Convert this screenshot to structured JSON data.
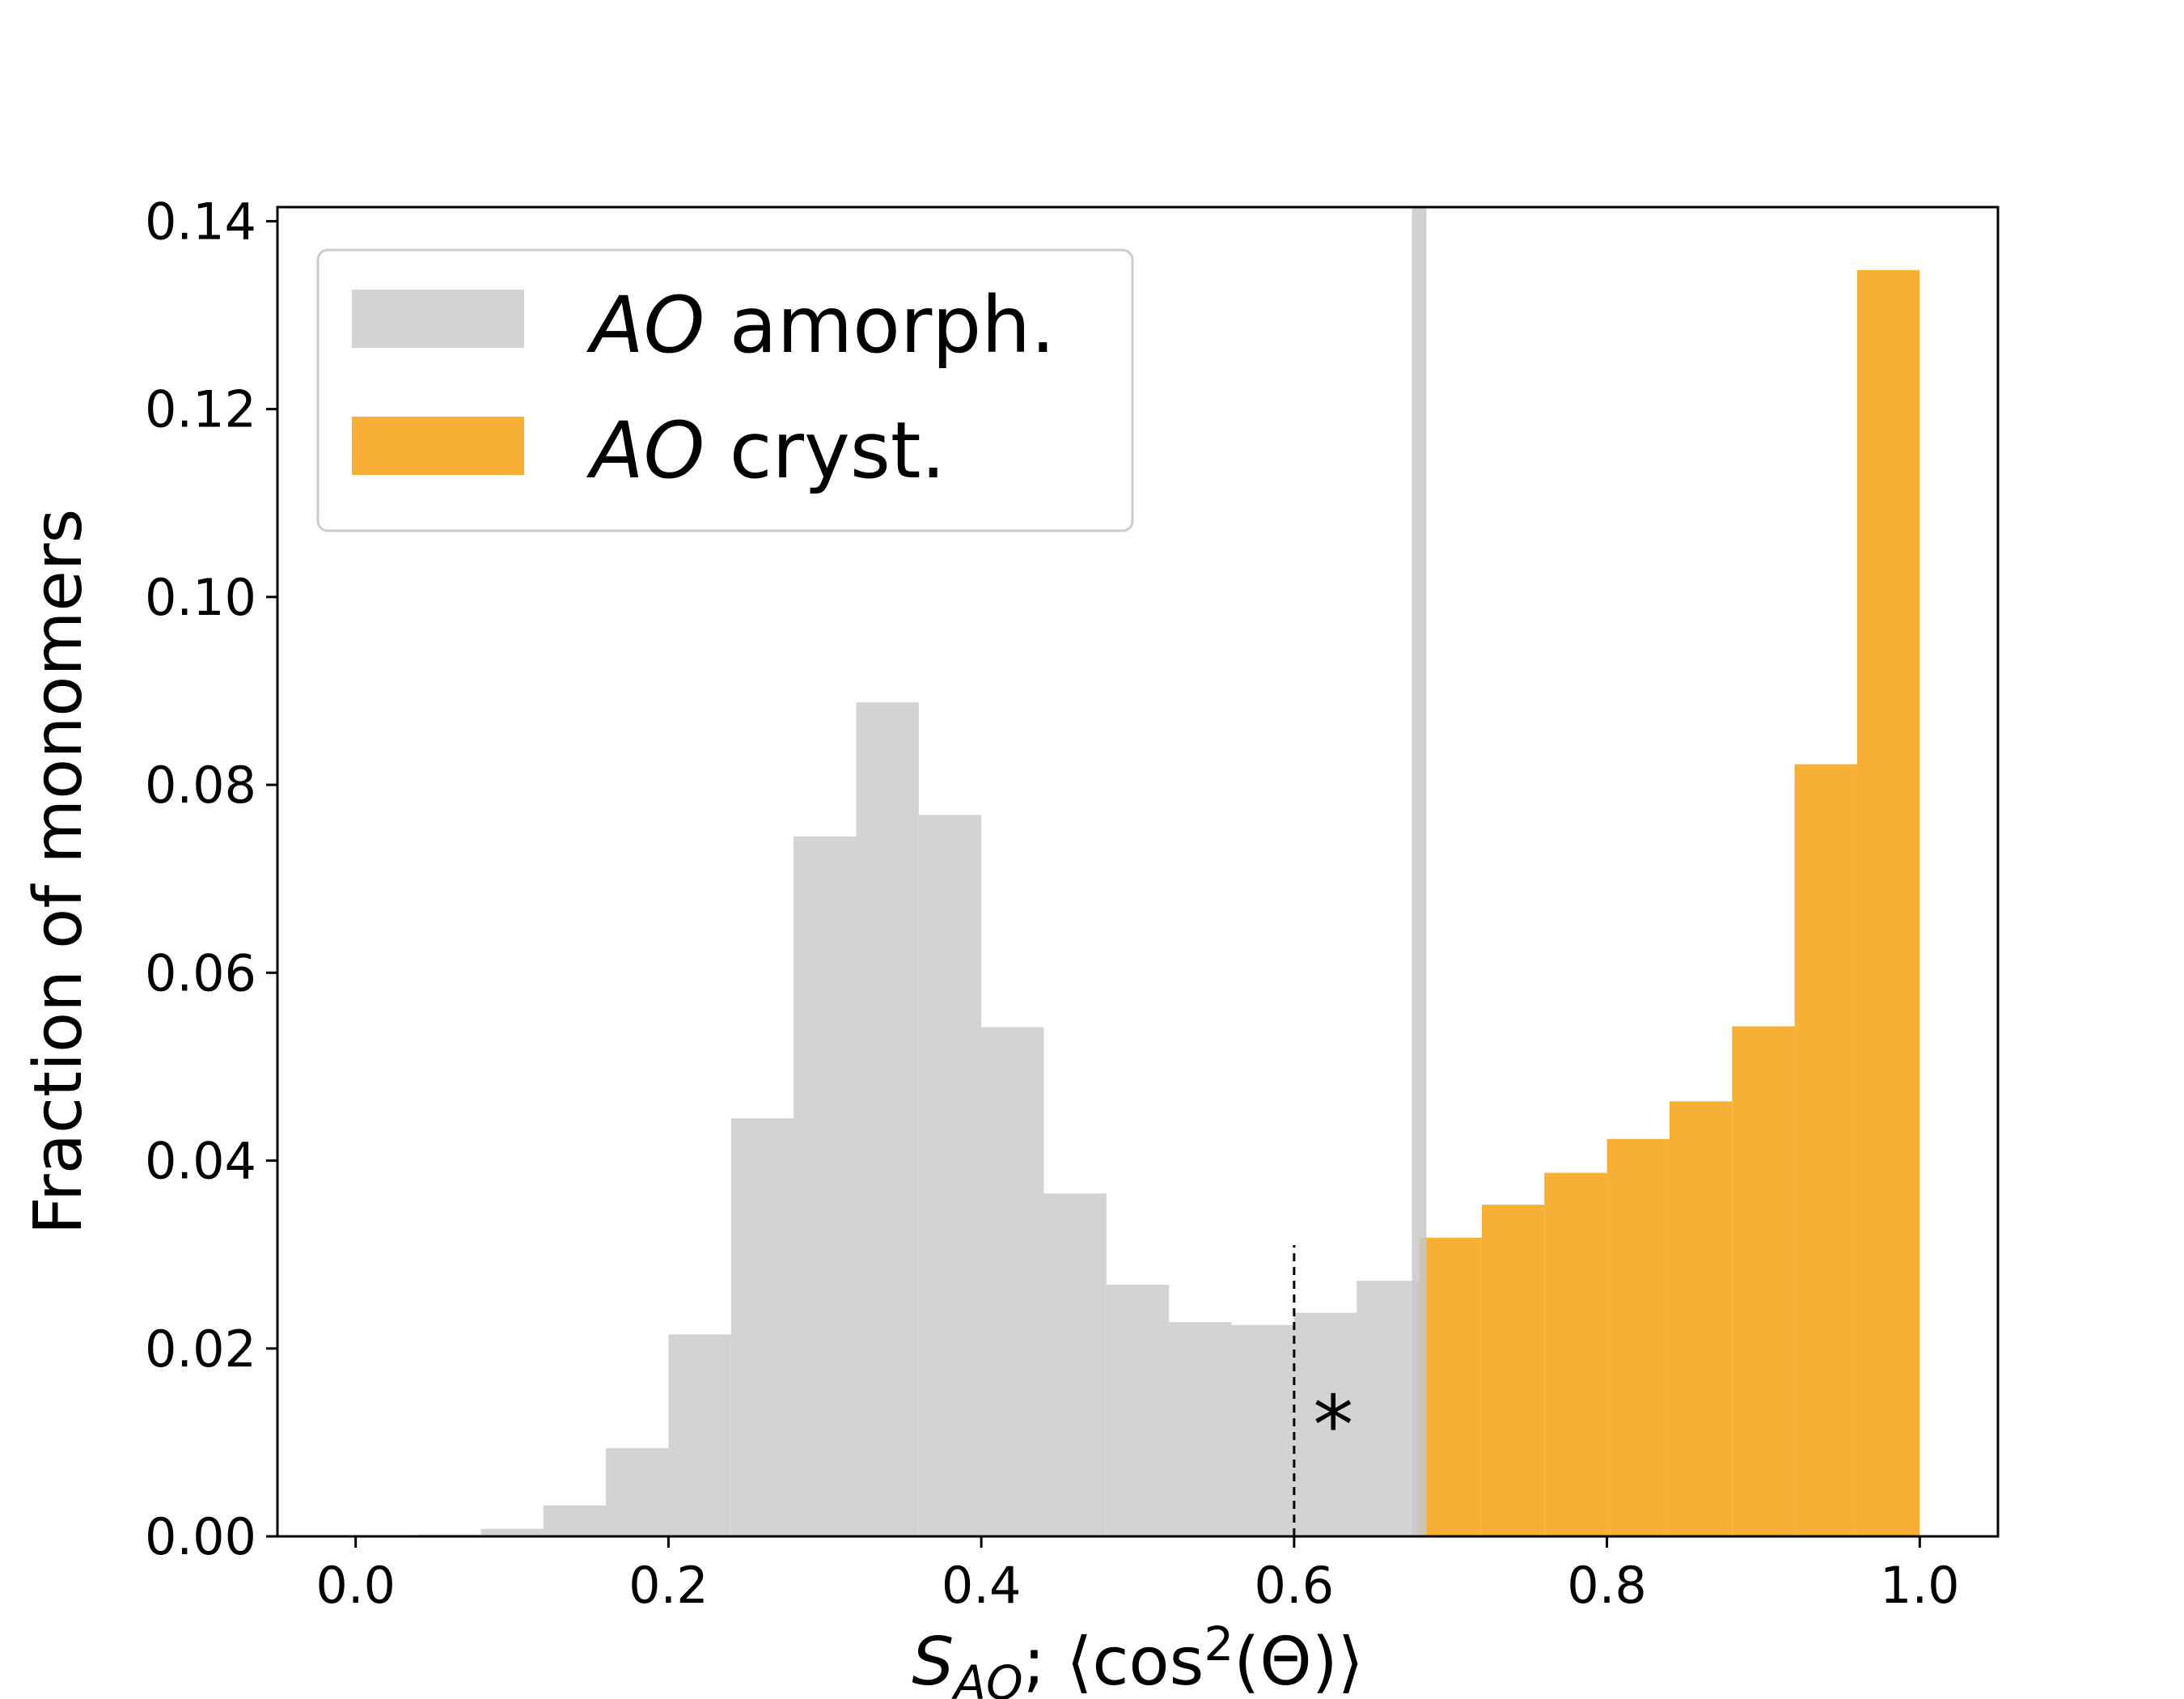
{
  "chart_data": {
    "type": "bar",
    "title": "",
    "xlabel": "S_AO; ⟨cos²(Θ)⟩",
    "xlabel_parts": {
      "base": "S",
      "sub": "AO",
      "mid": "; ⟨cos",
      "sup": "2",
      "tail": "(Θ)⟩"
    },
    "ylabel": "Fraction of monomers",
    "xlim": [
      -0.05,
      1.05
    ],
    "ylim": [
      0.0,
      0.1415
    ],
    "x_ticks": [
      0.0,
      0.2,
      0.4,
      0.6,
      0.8,
      1.0
    ],
    "x_tick_labels": [
      "0.0",
      "0.2",
      "0.4",
      "0.6",
      "0.8",
      "1.0"
    ],
    "y_ticks": [
      0.0,
      0.02,
      0.04,
      0.06,
      0.08,
      0.1,
      0.12,
      0.14
    ],
    "y_tick_labels": [
      "0.00",
      "0.02",
      "0.04",
      "0.06",
      "0.08",
      "0.10",
      "0.12",
      "0.14"
    ],
    "grid": false,
    "legend_position": "top-left",
    "series": [
      {
        "name": "amorph.",
        "legend_italic": "AO",
        "legend_rest": " amorph.",
        "color": "#d3d3d3",
        "bin_edges": [
          0.04,
          0.08,
          0.12,
          0.16,
          0.2,
          0.24,
          0.28,
          0.32,
          0.36,
          0.4,
          0.44,
          0.48,
          0.52,
          0.56,
          0.6,
          0.64,
          0.68
        ],
        "values": [
          0.0002,
          0.0008,
          0.0033,
          0.0094,
          0.0215,
          0.0445,
          0.0745,
          0.0888,
          0.0768,
          0.0542,
          0.0365,
          0.0268,
          0.0228,
          0.0225,
          0.0238,
          0.0272
        ]
      },
      {
        "name": "cryst.",
        "legend_italic": "AO",
        "legend_rest": " cryst.",
        "color": "#f7af35",
        "bin_edges": [
          0.68,
          0.72,
          0.76,
          0.8,
          0.84,
          0.88,
          0.92,
          0.96,
          1.0
        ],
        "values": [
          0.0318,
          0.0353,
          0.0387,
          0.0423,
          0.0463,
          0.0543,
          0.0822,
          0.1348
        ]
      }
    ],
    "vertical_lines": [
      {
        "x": 0.68,
        "color": "#c8c8c8",
        "style": "solid"
      },
      {
        "x": 0.6,
        "color": "#000000",
        "style": "dashed",
        "y_top": 0.031
      }
    ],
    "annotations": [
      {
        "text": "*",
        "x": 0.625,
        "y": 0.0125
      }
    ]
  }
}
